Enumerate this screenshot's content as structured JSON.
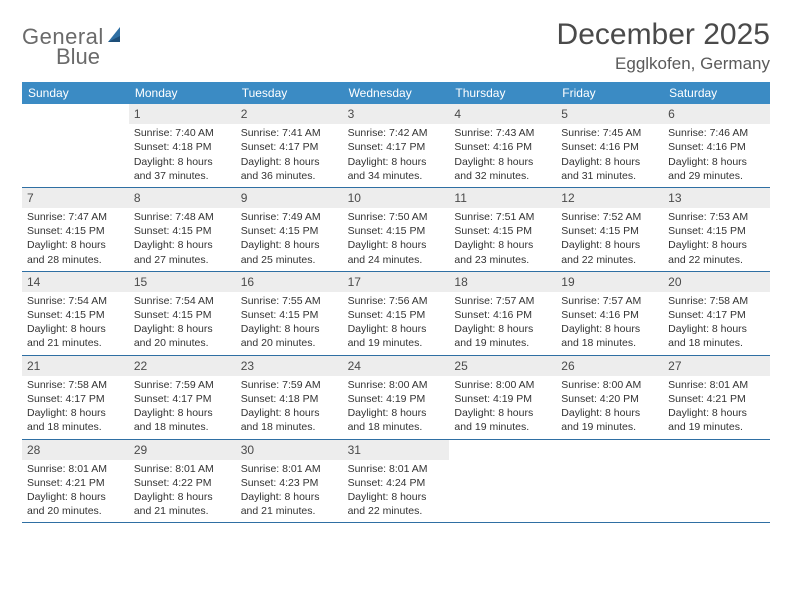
{
  "logo": {
    "part1": "General",
    "part2": "Blue",
    "sail_color": "#2f6fa3",
    "text_color": "#6a6a6a"
  },
  "title": "December 2025",
  "location": "Egglkofen, Germany",
  "header_bg": "#3b8bc4",
  "header_text_color": "#ffffff",
  "daynum_bg": "#ededed",
  "border_color": "#2f6fa3",
  "weekdays": [
    "Sunday",
    "Monday",
    "Tuesday",
    "Wednesday",
    "Thursday",
    "Friday",
    "Saturday"
  ],
  "weeks": [
    [
      {
        "n": "",
        "sunrise": "",
        "sunset": "",
        "daylight": ""
      },
      {
        "n": "1",
        "sunrise": "Sunrise: 7:40 AM",
        "sunset": "Sunset: 4:18 PM",
        "daylight": "Daylight: 8 hours and 37 minutes."
      },
      {
        "n": "2",
        "sunrise": "Sunrise: 7:41 AM",
        "sunset": "Sunset: 4:17 PM",
        "daylight": "Daylight: 8 hours and 36 minutes."
      },
      {
        "n": "3",
        "sunrise": "Sunrise: 7:42 AM",
        "sunset": "Sunset: 4:17 PM",
        "daylight": "Daylight: 8 hours and 34 minutes."
      },
      {
        "n": "4",
        "sunrise": "Sunrise: 7:43 AM",
        "sunset": "Sunset: 4:16 PM",
        "daylight": "Daylight: 8 hours and 32 minutes."
      },
      {
        "n": "5",
        "sunrise": "Sunrise: 7:45 AM",
        "sunset": "Sunset: 4:16 PM",
        "daylight": "Daylight: 8 hours and 31 minutes."
      },
      {
        "n": "6",
        "sunrise": "Sunrise: 7:46 AM",
        "sunset": "Sunset: 4:16 PM",
        "daylight": "Daylight: 8 hours and 29 minutes."
      }
    ],
    [
      {
        "n": "7",
        "sunrise": "Sunrise: 7:47 AM",
        "sunset": "Sunset: 4:15 PM",
        "daylight": "Daylight: 8 hours and 28 minutes."
      },
      {
        "n": "8",
        "sunrise": "Sunrise: 7:48 AM",
        "sunset": "Sunset: 4:15 PM",
        "daylight": "Daylight: 8 hours and 27 minutes."
      },
      {
        "n": "9",
        "sunrise": "Sunrise: 7:49 AM",
        "sunset": "Sunset: 4:15 PM",
        "daylight": "Daylight: 8 hours and 25 minutes."
      },
      {
        "n": "10",
        "sunrise": "Sunrise: 7:50 AM",
        "sunset": "Sunset: 4:15 PM",
        "daylight": "Daylight: 8 hours and 24 minutes."
      },
      {
        "n": "11",
        "sunrise": "Sunrise: 7:51 AM",
        "sunset": "Sunset: 4:15 PM",
        "daylight": "Daylight: 8 hours and 23 minutes."
      },
      {
        "n": "12",
        "sunrise": "Sunrise: 7:52 AM",
        "sunset": "Sunset: 4:15 PM",
        "daylight": "Daylight: 8 hours and 22 minutes."
      },
      {
        "n": "13",
        "sunrise": "Sunrise: 7:53 AM",
        "sunset": "Sunset: 4:15 PM",
        "daylight": "Daylight: 8 hours and 22 minutes."
      }
    ],
    [
      {
        "n": "14",
        "sunrise": "Sunrise: 7:54 AM",
        "sunset": "Sunset: 4:15 PM",
        "daylight": "Daylight: 8 hours and 21 minutes."
      },
      {
        "n": "15",
        "sunrise": "Sunrise: 7:54 AM",
        "sunset": "Sunset: 4:15 PM",
        "daylight": "Daylight: 8 hours and 20 minutes."
      },
      {
        "n": "16",
        "sunrise": "Sunrise: 7:55 AM",
        "sunset": "Sunset: 4:15 PM",
        "daylight": "Daylight: 8 hours and 20 minutes."
      },
      {
        "n": "17",
        "sunrise": "Sunrise: 7:56 AM",
        "sunset": "Sunset: 4:15 PM",
        "daylight": "Daylight: 8 hours and 19 minutes."
      },
      {
        "n": "18",
        "sunrise": "Sunrise: 7:57 AM",
        "sunset": "Sunset: 4:16 PM",
        "daylight": "Daylight: 8 hours and 19 minutes."
      },
      {
        "n": "19",
        "sunrise": "Sunrise: 7:57 AM",
        "sunset": "Sunset: 4:16 PM",
        "daylight": "Daylight: 8 hours and 18 minutes."
      },
      {
        "n": "20",
        "sunrise": "Sunrise: 7:58 AM",
        "sunset": "Sunset: 4:17 PM",
        "daylight": "Daylight: 8 hours and 18 minutes."
      }
    ],
    [
      {
        "n": "21",
        "sunrise": "Sunrise: 7:58 AM",
        "sunset": "Sunset: 4:17 PM",
        "daylight": "Daylight: 8 hours and 18 minutes."
      },
      {
        "n": "22",
        "sunrise": "Sunrise: 7:59 AM",
        "sunset": "Sunset: 4:17 PM",
        "daylight": "Daylight: 8 hours and 18 minutes."
      },
      {
        "n": "23",
        "sunrise": "Sunrise: 7:59 AM",
        "sunset": "Sunset: 4:18 PM",
        "daylight": "Daylight: 8 hours and 18 minutes."
      },
      {
        "n": "24",
        "sunrise": "Sunrise: 8:00 AM",
        "sunset": "Sunset: 4:19 PM",
        "daylight": "Daylight: 8 hours and 18 minutes."
      },
      {
        "n": "25",
        "sunrise": "Sunrise: 8:00 AM",
        "sunset": "Sunset: 4:19 PM",
        "daylight": "Daylight: 8 hours and 19 minutes."
      },
      {
        "n": "26",
        "sunrise": "Sunrise: 8:00 AM",
        "sunset": "Sunset: 4:20 PM",
        "daylight": "Daylight: 8 hours and 19 minutes."
      },
      {
        "n": "27",
        "sunrise": "Sunrise: 8:01 AM",
        "sunset": "Sunset: 4:21 PM",
        "daylight": "Daylight: 8 hours and 19 minutes."
      }
    ],
    [
      {
        "n": "28",
        "sunrise": "Sunrise: 8:01 AM",
        "sunset": "Sunset: 4:21 PM",
        "daylight": "Daylight: 8 hours and 20 minutes."
      },
      {
        "n": "29",
        "sunrise": "Sunrise: 8:01 AM",
        "sunset": "Sunset: 4:22 PM",
        "daylight": "Daylight: 8 hours and 21 minutes."
      },
      {
        "n": "30",
        "sunrise": "Sunrise: 8:01 AM",
        "sunset": "Sunset: 4:23 PM",
        "daylight": "Daylight: 8 hours and 21 minutes."
      },
      {
        "n": "31",
        "sunrise": "Sunrise: 8:01 AM",
        "sunset": "Sunset: 4:24 PM",
        "daylight": "Daylight: 8 hours and 22 minutes."
      },
      {
        "n": "",
        "sunrise": "",
        "sunset": "",
        "daylight": ""
      },
      {
        "n": "",
        "sunrise": "",
        "sunset": "",
        "daylight": ""
      },
      {
        "n": "",
        "sunrise": "",
        "sunset": "",
        "daylight": ""
      }
    ]
  ]
}
